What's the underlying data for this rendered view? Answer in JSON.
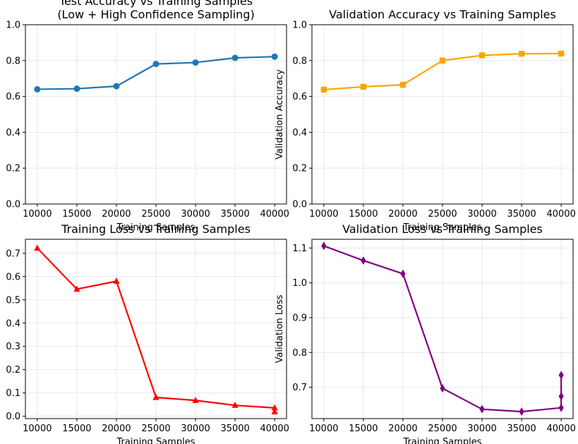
{
  "chart_data": [
    {
      "type": "line",
      "title_lines": [
        "Test Accuracy vs Training Samples",
        "(Low + High Confidence Sampling)"
      ],
      "xlabel": "Training Samples",
      "ylabel": "",
      "x": [
        10000,
        15000,
        20000,
        25000,
        30000,
        35000,
        40000
      ],
      "series": [
        {
          "values": [
            0.64,
            0.643,
            0.657,
            0.781,
            0.789,
            0.815,
            0.822
          ],
          "color": "#1f77b4",
          "marker": "circle"
        }
      ],
      "xlim": [
        8500,
        41500
      ],
      "ylim": [
        0,
        1.0
      ],
      "xticks": [
        10000,
        15000,
        20000,
        25000,
        30000,
        35000,
        40000
      ],
      "yticks": [
        "0.0",
        "0.2",
        "0.4",
        "0.6",
        "0.8",
        "1.0"
      ],
      "grid": true
    },
    {
      "type": "line",
      "title_lines": [
        "Validation Accuracy vs Training Samples"
      ],
      "xlabel": "Training Samples",
      "ylabel": "Validation Accuracy",
      "x": [
        10000,
        15000,
        20000,
        25000,
        30000,
        35000,
        40000
      ],
      "series": [
        {
          "values": [
            0.638,
            0.654,
            0.665,
            0.8,
            0.829,
            0.838,
            0.839
          ],
          "color": "#ffa500",
          "marker": "square"
        }
      ],
      "xlim": [
        8500,
        41500
      ],
      "ylim": [
        0,
        1.0
      ],
      "xticks": [
        10000,
        15000,
        20000,
        25000,
        30000,
        35000,
        40000
      ],
      "yticks": [
        "0.0",
        "0.2",
        "0.4",
        "0.6",
        "0.8",
        "1.0"
      ],
      "grid": true
    },
    {
      "type": "line",
      "title_lines": [
        "Training Loss vs Training Samples"
      ],
      "xlabel": "Training Samples",
      "ylabel": "",
      "x": [
        10000,
        15000,
        20000,
        25000,
        30000,
        35000,
        40000
      ],
      "series": [
        {
          "values": [
            0.722,
            0.546,
            0.58,
            0.081,
            0.068,
            0.047,
            0.036
          ],
          "color": "#ff0000",
          "marker": "triangle"
        }
      ],
      "extra_points": [
        {
          "x": 40000,
          "y": 0.019
        }
      ],
      "xlim": [
        8500,
        41500
      ],
      "ylim": [
        -0.01,
        0.76
      ],
      "xticks": [
        10000,
        15000,
        20000,
        25000,
        30000,
        35000,
        40000
      ],
      "yticks": [
        "0.0",
        "0.1",
        "0.2",
        "0.3",
        "0.4",
        "0.5",
        "0.6",
        "0.7"
      ],
      "grid": true
    },
    {
      "type": "line",
      "title_lines": [
        "Validation Loss vs Training Samples"
      ],
      "xlabel": "Training Samples",
      "ylabel": "Validation Loss",
      "x": [
        10000,
        15000,
        20000,
        25000,
        30000,
        35000,
        40000,
        40000,
        40000
      ],
      "series": [
        {
          "values": [
            1.106,
            1.064,
            1.026,
            0.697,
            0.637,
            0.63,
            0.641,
            0.674,
            0.735
          ],
          "color": "#800080",
          "marker": "diamond"
        }
      ],
      "xlim": [
        8500,
        41500
      ],
      "ylim": [
        0.61,
        1.125
      ],
      "xticks": [
        10000,
        15000,
        20000,
        25000,
        30000,
        35000,
        40000
      ],
      "yticks": [
        "0.7",
        "0.8",
        "0.9",
        "1.0",
        "1.1"
      ],
      "grid": true
    }
  ]
}
